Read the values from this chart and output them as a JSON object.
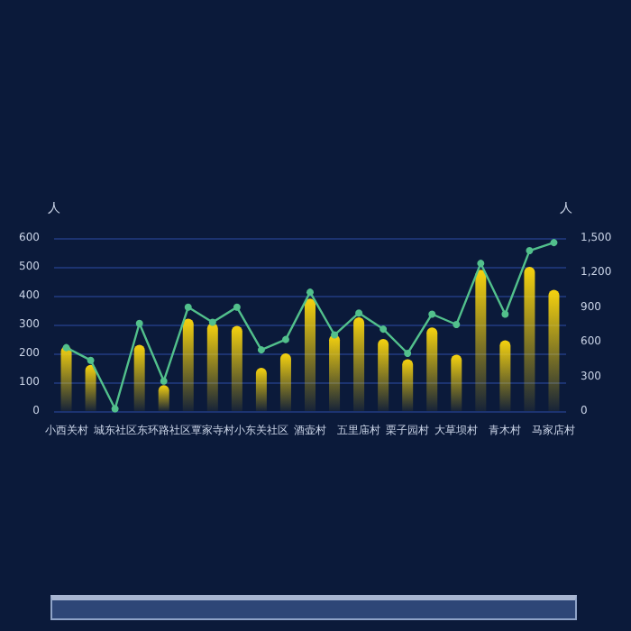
{
  "chart_data": {
    "type": "bar",
    "ylabel": "人",
    "y2label": "人",
    "categories": [
      "小西关村",
      null,
      "城东社区",
      null,
      "东环路社区",
      null,
      "覃家寺村",
      null,
      "小东关社区",
      null,
      "酒壶村",
      null,
      "五里庙村",
      null,
      "栗子园村",
      null,
      "大草坝村",
      null,
      "青木村",
      null,
      "马家店村"
    ],
    "series": [
      {
        "color": "#f5d20f",
        "values": [
          225,
          160,
          0,
          230,
          90,
          320,
          305,
          295,
          150,
          200,
          390,
          265,
          325,
          250,
          180,
          290,
          195,
          490,
          245,
          500,
          420
        ]
      },
      {
        "type": "line",
        "axis": "y2",
        "color": "#52c08c",
        "values": [
          550,
          440,
          20,
          760,
          260,
          900,
          770,
          900,
          530,
          620,
          1030,
          660,
          850,
          710,
          500,
          840,
          750,
          1280,
          840,
          1390,
          1460
        ]
      }
    ],
    "ylim": [
      0,
      600
    ],
    "yticks": [
      0,
      100,
      200,
      300,
      400,
      500,
      600
    ],
    "y2lim": [
      0,
      1500
    ],
    "y2ticks": [
      0,
      300,
      600,
      900,
      {
        "value": 1200,
        "label": "1,200"
      },
      {
        "value": 1500,
        "label": "1,500"
      }
    ],
    "grid": "y",
    "marker": "circle",
    "line_style": "solid"
  }
}
